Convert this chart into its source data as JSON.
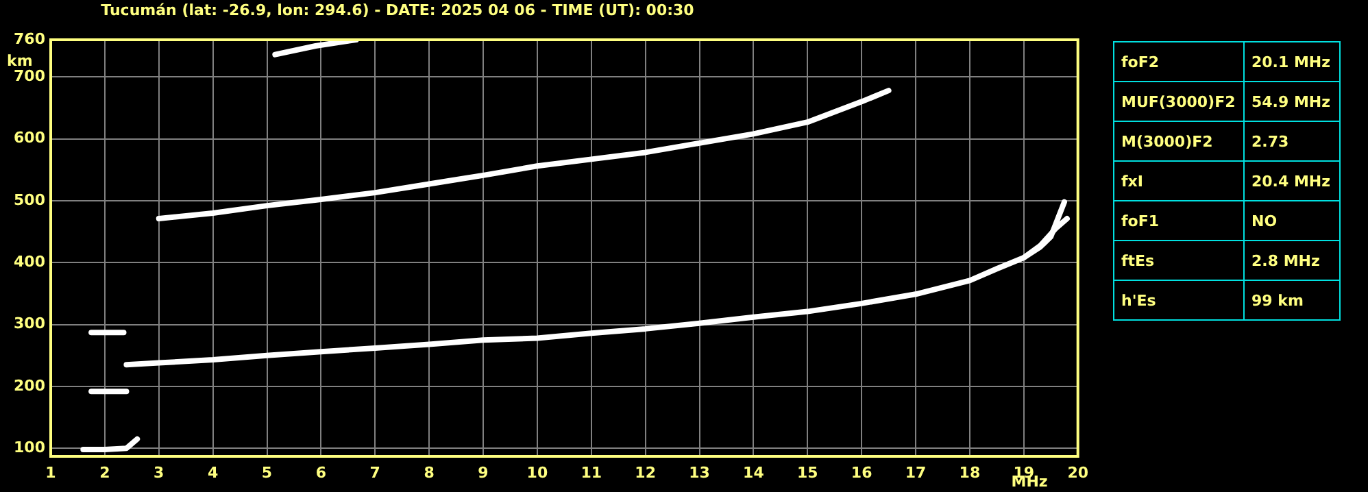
{
  "chart_data": [
    {
      "type": "line",
      "title": "Tucumán (lat: -26.9, lon: 294.6) - DATE: 2025 04 06 - TIME (UT): 00:30",
      "xlabel": "MHz",
      "ylabel": "km",
      "xlim": [
        1,
        20
      ],
      "ylim": [
        87,
        760
      ],
      "xticks": [
        1,
        2,
        3,
        4,
        5,
        6,
        7,
        8,
        9,
        10,
        11,
        12,
        13,
        14,
        15,
        16,
        17,
        18,
        19,
        20
      ],
      "yticks": [
        100,
        200,
        300,
        400,
        500,
        600,
        700,
        760
      ],
      "grid": true,
      "series": [
        {
          "color": "#ffffff",
          "x": [
            2.4,
            3,
            4,
            5,
            6,
            7,
            8,
            9,
            10,
            11,
            12,
            13,
            14,
            15,
            16,
            17,
            18,
            18.5,
            19,
            19.3,
            19.6,
            19.8
          ],
          "values": [
            235,
            238,
            243,
            250,
            256,
            262,
            268,
            275,
            278,
            286,
            293,
            302,
            312,
            321,
            334,
            349,
            371,
            390,
            408,
            427,
            456,
            471
          ]
        },
        {
          "color": "#ffffff",
          "x": [
            19,
            19.3,
            19.5,
            19.75
          ],
          "values": [
            408,
            425,
            442,
            498
          ]
        },
        {
          "color": "#ffffff",
          "x": [
            3,
            4,
            5,
            6,
            7,
            8,
            9,
            10,
            11,
            12,
            13,
            14,
            15,
            16,
            16.5
          ],
          "values": [
            471,
            480,
            492,
            502,
            513,
            527,
            541,
            556,
            567,
            578,
            593,
            608,
            627,
            660,
            678
          ]
        },
        {
          "color": "#ffffff",
          "x": [
            5.15,
            5.9,
            6.65
          ],
          "values": [
            736,
            750,
            760
          ]
        },
        {
          "color": "#ffffff",
          "x": [
            1.6,
            2,
            2.4,
            2.6
          ],
          "values": [
            98,
            98,
            100,
            115
          ]
        },
        {
          "color": "#ffffff",
          "x": [
            1.75,
            2.05,
            2.4
          ],
          "values": [
            192,
            192,
            192
          ]
        },
        {
          "color": "#ffffff",
          "x": [
            1.75,
            2.05,
            2.35
          ],
          "values": [
            287,
            287,
            287
          ]
        }
      ]
    },
    {
      "type": "other",
      "annotations": [
        "foF2",
        "20.1 MHz",
        "MUF(3000)F2",
        "54.9 MHz",
        "M(3000)F2",
        "2.73",
        "fxI",
        "20.4 MHz",
        "foF1",
        "NO",
        "ftEs",
        "2.8 MHz",
        "h'Es",
        "99 km"
      ]
    }
  ]
}
